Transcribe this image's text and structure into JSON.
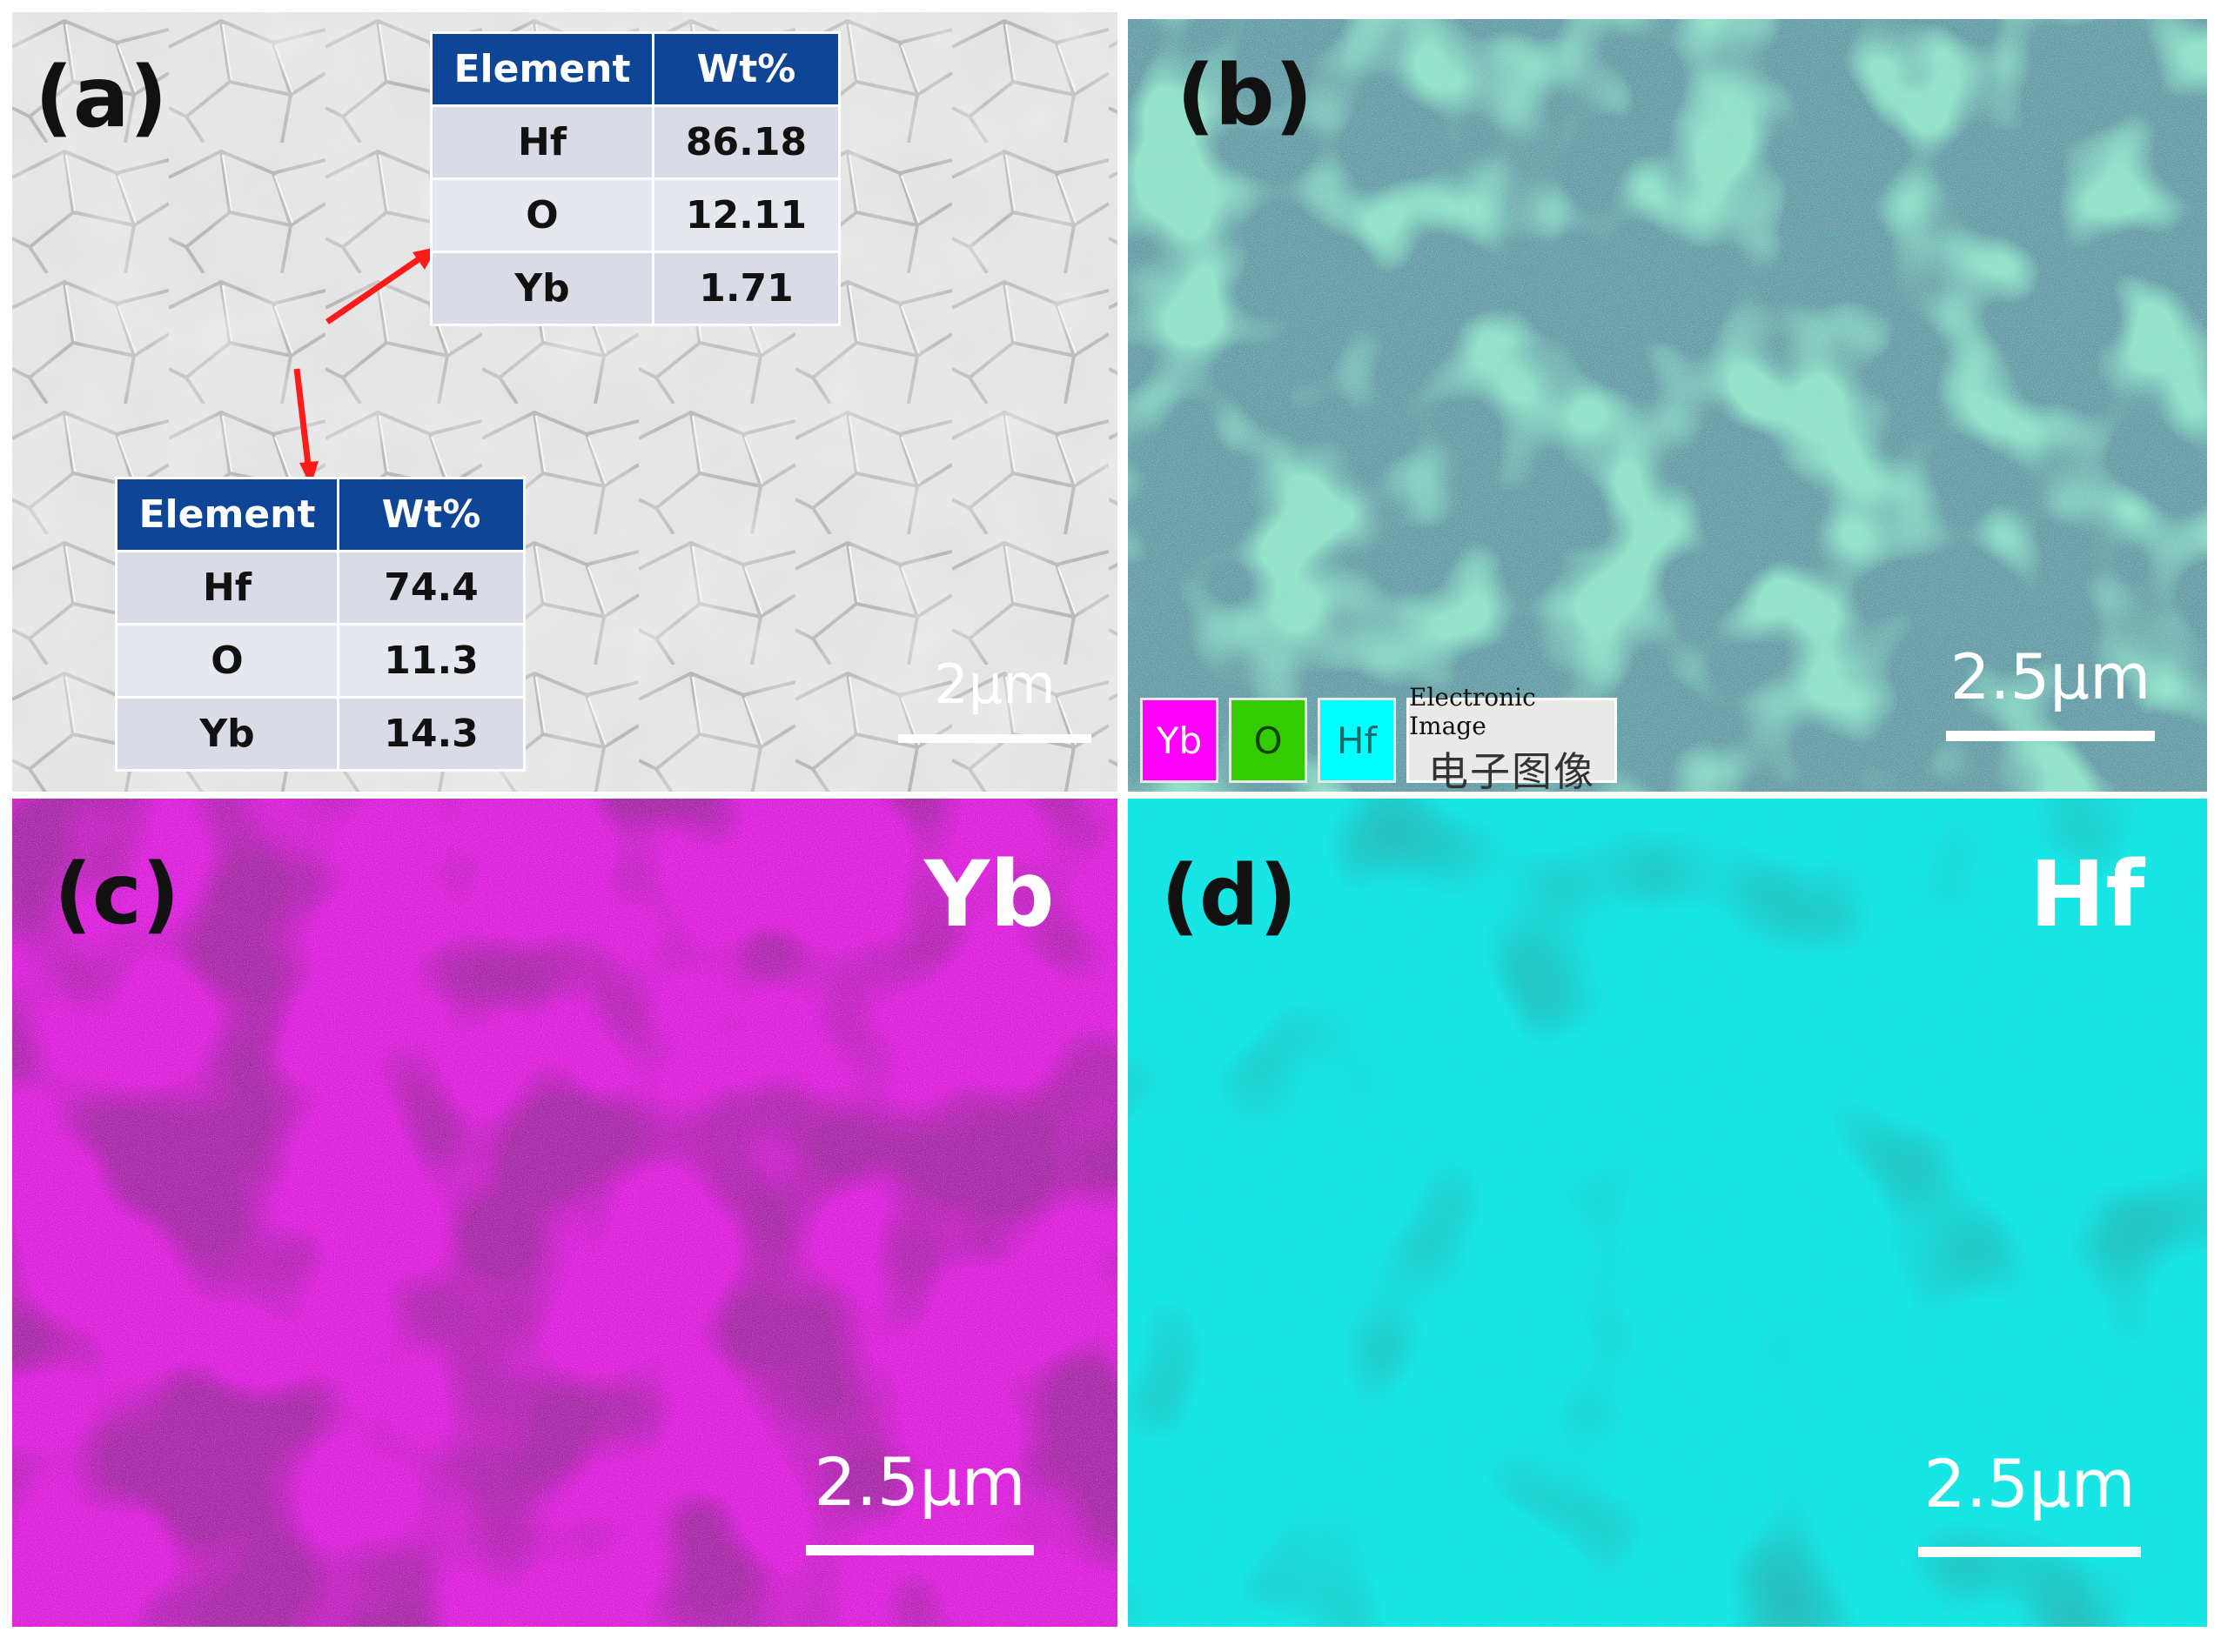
{
  "panel_a": {
    "label": "(a)",
    "scale_bar": "2μm",
    "table_top": {
      "headers": [
        "Element",
        "Wt%"
      ],
      "rows": [
        [
          "Hf",
          "86.18"
        ],
        [
          "O",
          "12.11"
        ],
        [
          "Yb",
          "1.71"
        ]
      ]
    },
    "table_bottom": {
      "headers": [
        "Element",
        "Wt%"
      ],
      "rows": [
        [
          "Hf",
          "74.4"
        ],
        [
          "O",
          "11.3"
        ],
        [
          "Yb",
          "14.3"
        ]
      ]
    },
    "arrow_color": "#ff1a1a"
  },
  "panel_b": {
    "label": "(b)",
    "scale_bar": "2.5μm",
    "legend": [
      {
        "label": "Yb",
        "color": "#ff00ff"
      },
      {
        "label": "O",
        "color": "#33cc00"
      },
      {
        "label": "Hf",
        "color": "#00ffff"
      }
    ],
    "legend_image_title": "Electronic Image",
    "legend_image_subtitle": "电子图像"
  },
  "panel_c": {
    "label": "(c)",
    "element": "Yb",
    "scale_bar": "2.5μm",
    "color": "#e01ee0"
  },
  "panel_d": {
    "label": "(d)",
    "element": "Hf",
    "scale_bar": "2.5μm",
    "color": "#12e6e6"
  }
}
